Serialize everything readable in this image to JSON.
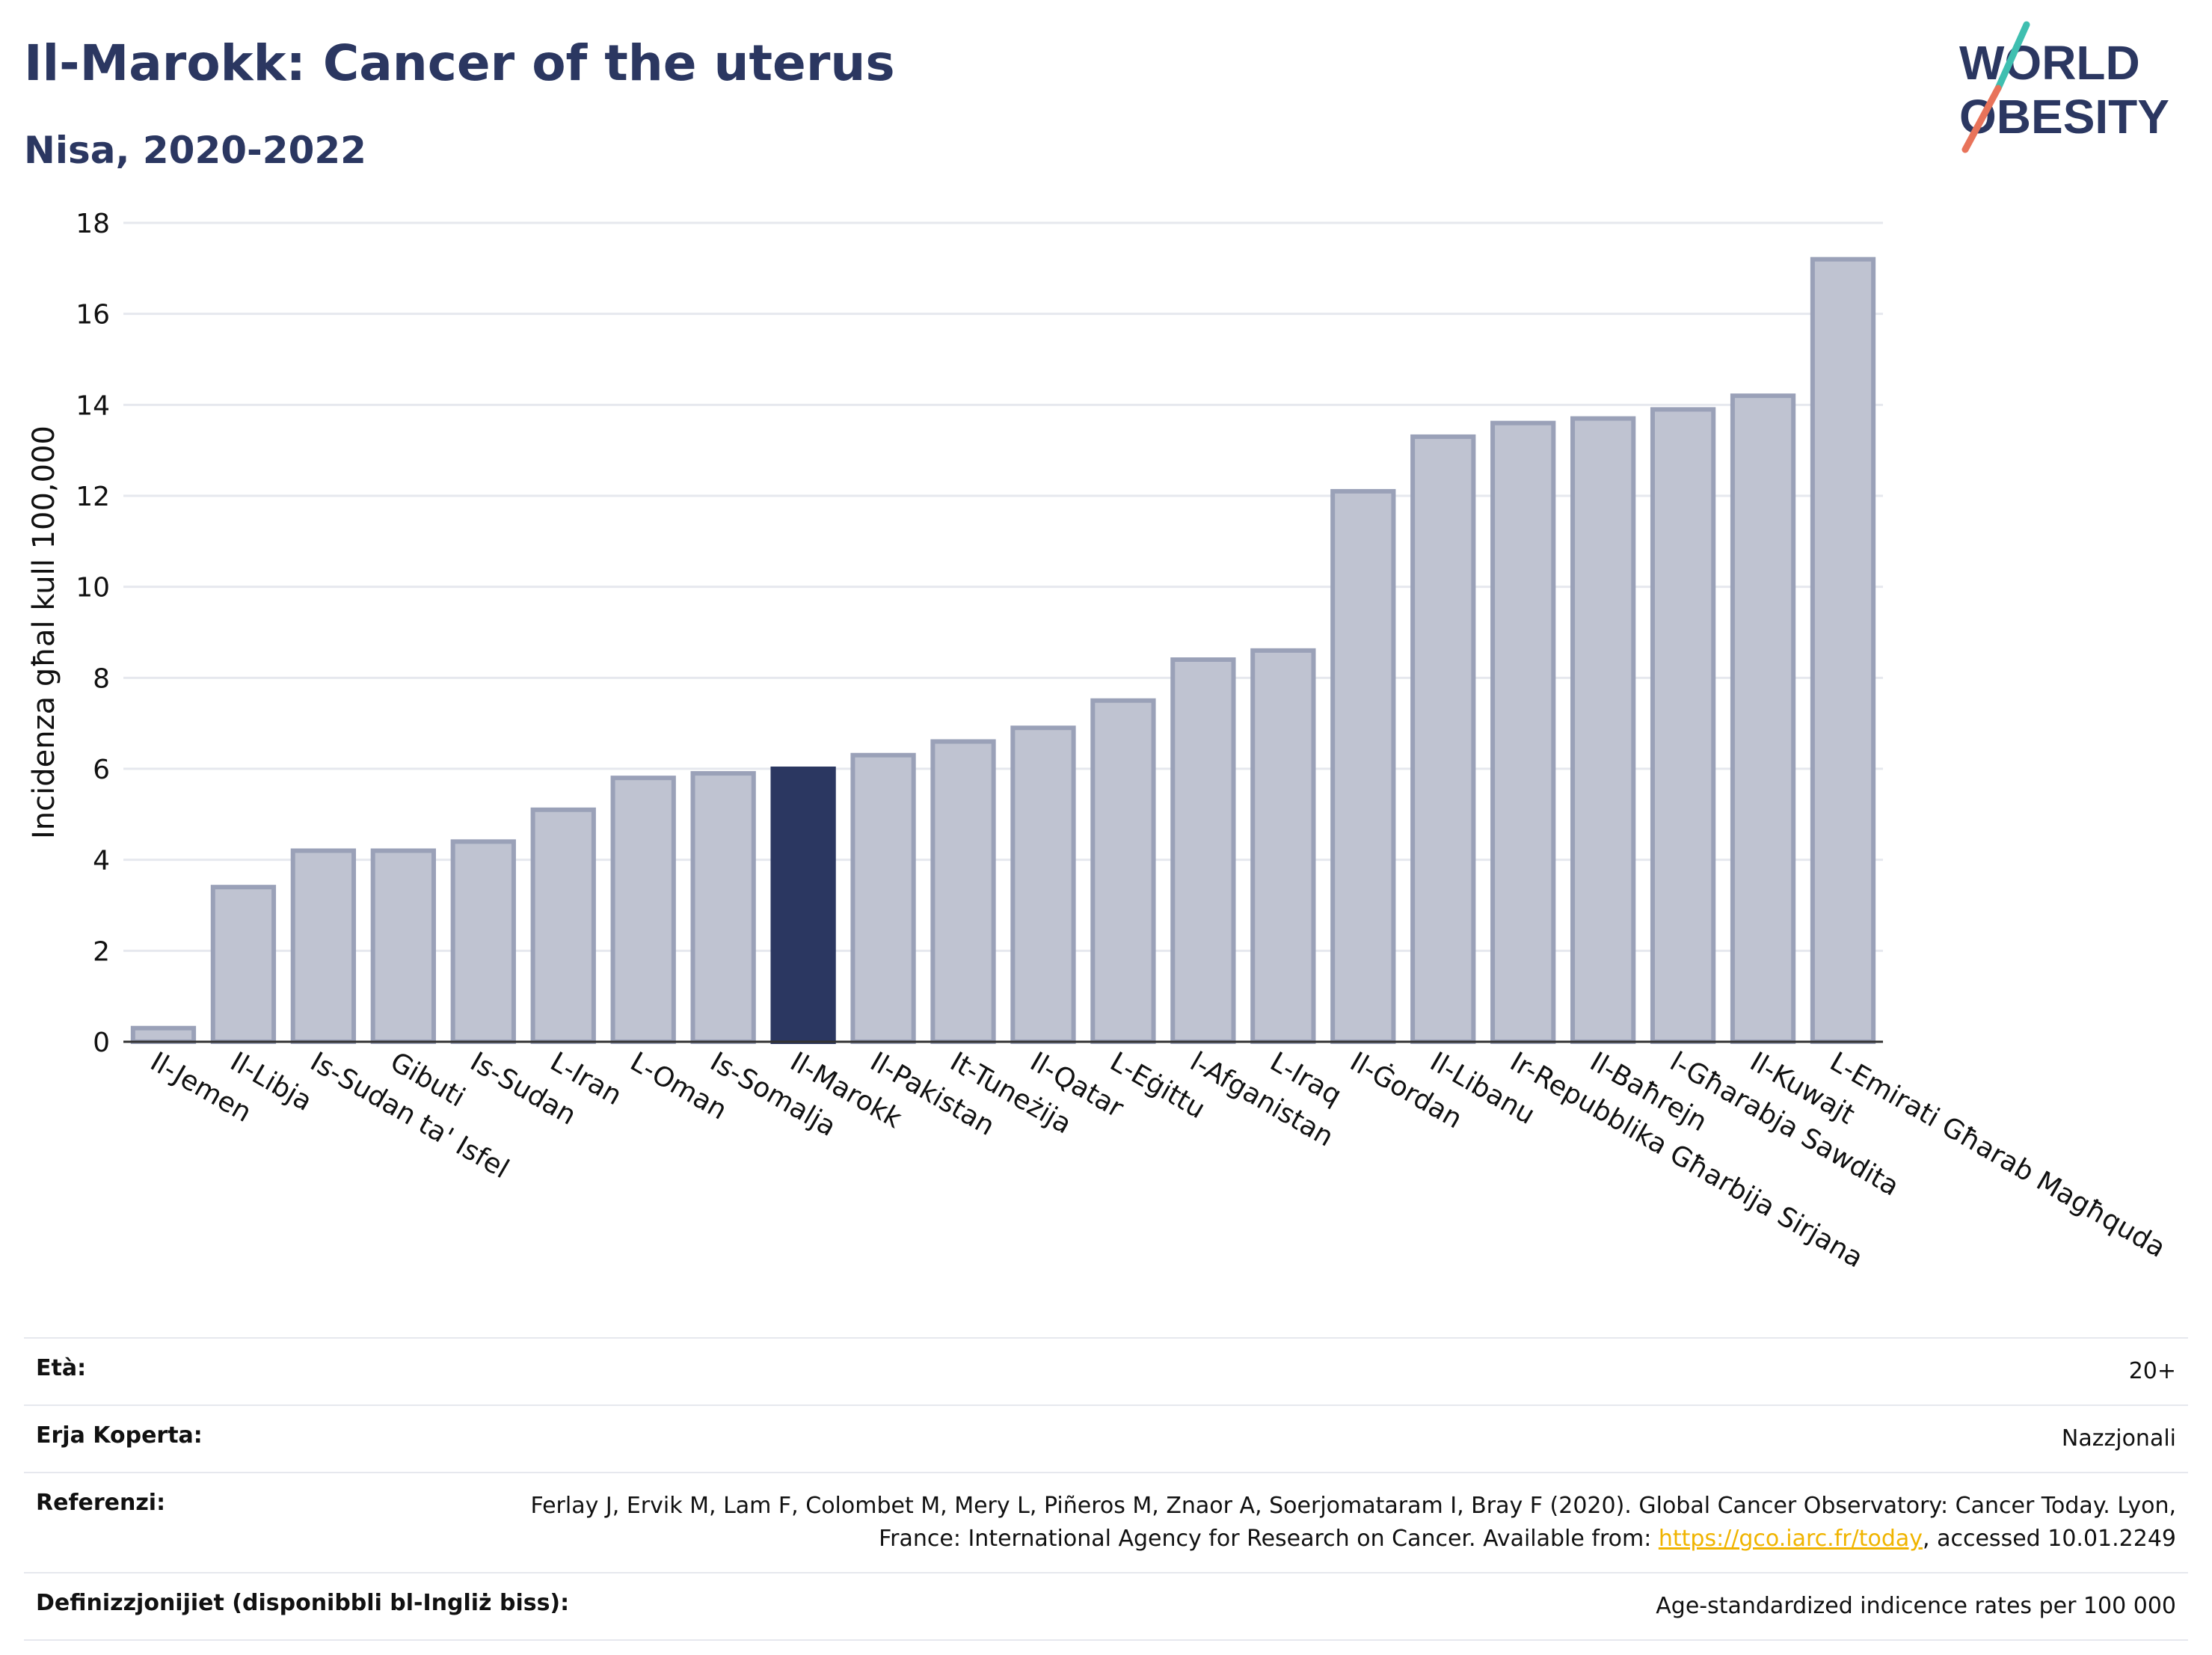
{
  "header": {
    "title": "Il-Marokk: Cancer of the uterus",
    "subtitle": "Nisa, 2020-2022"
  },
  "logo": {
    "line1": "WORLD",
    "line2": "OBESITY",
    "colors": {
      "text": "#2b3761",
      "slash_top": "#3fbfb0",
      "slash_bottom": "#e8735a"
    }
  },
  "chart_data": {
    "type": "bar",
    "title": "Il-Marokk: Cancer of the uterus",
    "subtitle": "Nisa, 2020-2022",
    "ylabel": "Incidenza għal kull 100,000",
    "xlabel": "",
    "ylim": [
      0,
      18
    ],
    "yticks": [
      0,
      2,
      4,
      6,
      8,
      10,
      12,
      14,
      16,
      18
    ],
    "grid": true,
    "highlight": "Il-Marokk",
    "colors": {
      "bar": "#bfc3d1",
      "bar_edge": "#9aa1b8",
      "highlight": "#2b3761",
      "grid": "#e6e8ee"
    },
    "categories": [
      "Il-Jemen",
      "Il-Libja",
      "Is-Sudan ta' Isfel",
      "Gibuti",
      "Is-Sudan",
      "L-Iran",
      "L-Oman",
      "Is-Somalja",
      "Il-Marokk",
      "Il-Pakistan",
      "It-Tuneżija",
      "Il-Qatar",
      "L-Eġittu",
      "l-Afganistan",
      "L-Iraq",
      "Il-Ġordan",
      "Il-Libanu",
      "Ir-Repubblika Għarbija Sirjana",
      "Il-Baħrejn",
      "l-Għarabja Sawdita",
      "Il-Kuwajt",
      "L-Emirati Għarab Magħquda"
    ],
    "values": [
      0.3,
      3.4,
      4.2,
      4.2,
      4.4,
      5.1,
      5.8,
      5.9,
      6.0,
      6.3,
      6.6,
      6.9,
      7.5,
      8.4,
      8.6,
      12.1,
      13.3,
      13.6,
      13.7,
      13.9,
      14.2,
      17.2
    ]
  },
  "info": {
    "rows": [
      {
        "label": "Età:",
        "value": "20+"
      },
      {
        "label": "Erja Koperta:",
        "value": "Nazzjonali"
      },
      {
        "label": "Referenzi:",
        "value_before": "Ferlay J, Ervik M, Lam F, Colombet M, Mery L, Piñeros M, Znaor A, Soerjomataram I, Bray F (2020). Global Cancer Observatory: Cancer Today. Lyon, France: International Agency for Research on Cancer. Available from: ",
        "link": "https://gco.iarc.fr/today",
        "value_after": ", accessed 10.01.2249"
      },
      {
        "label": "Definizzjonijiet (disponibbli bl-Ingliż biss):",
        "value": "Age-standardized indicence rates per 100 000"
      }
    ]
  }
}
